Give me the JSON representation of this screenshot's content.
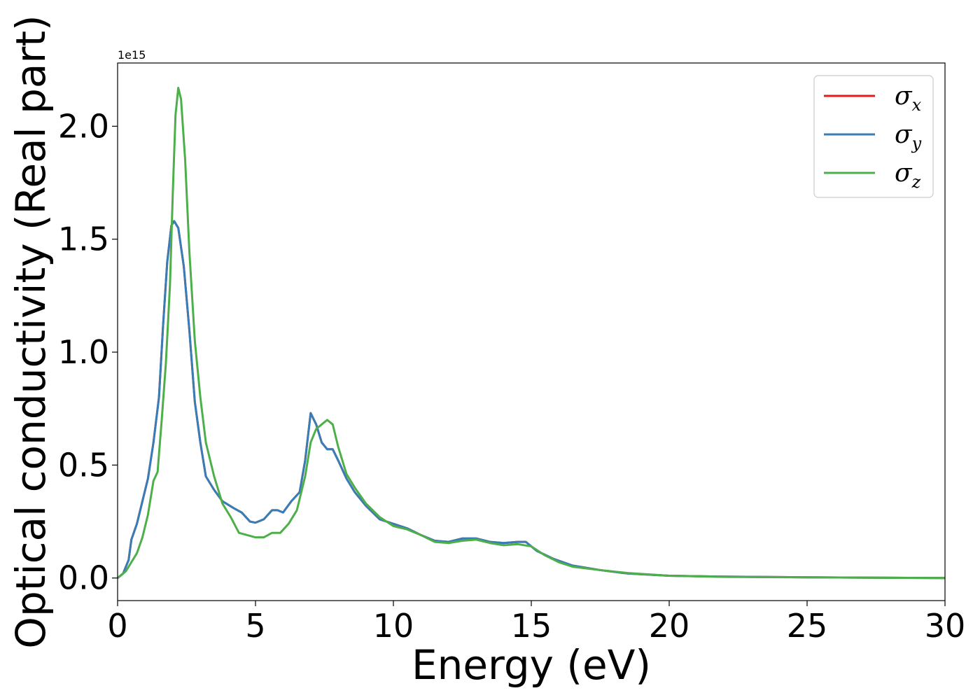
{
  "chart_data": {
    "type": "line",
    "xlabel": "Energy (eV)",
    "ylabel": "Optical conductivity (Real part)",
    "y_offset_label": "1e15",
    "xlim": [
      0,
      30
    ],
    "ylim": [
      -0.1,
      2.28
    ],
    "x_ticks": [
      0,
      5,
      10,
      15,
      20,
      25,
      30
    ],
    "x_tick_labels": [
      "0",
      "5",
      "10",
      "15",
      "20",
      "25",
      "30"
    ],
    "y_ticks": [
      0.0,
      0.5,
      1.0,
      1.5,
      2.0
    ],
    "y_tick_labels": [
      "0.0",
      "0.5",
      "1.0",
      "1.5",
      "2.0"
    ],
    "grid": false,
    "legend_position": "top-right",
    "series": [
      {
        "name": "σ",
        "subscript": "x",
        "color": "#e41a1c",
        "points": [
          [
            0,
            0
          ],
          [
            0.2,
            0.02
          ],
          [
            0.4,
            0.08
          ],
          [
            0.5,
            0.17
          ],
          [
            0.7,
            0.24
          ],
          [
            0.9,
            0.34
          ],
          [
            1.1,
            0.44
          ],
          [
            1.3,
            0.6
          ],
          [
            1.5,
            0.8
          ],
          [
            1.65,
            1.12
          ],
          [
            1.8,
            1.4
          ],
          [
            1.95,
            1.56
          ],
          [
            2.05,
            1.58
          ],
          [
            2.2,
            1.55
          ],
          [
            2.4,
            1.38
          ],
          [
            2.6,
            1.1
          ],
          [
            2.8,
            0.78
          ],
          [
            3.0,
            0.6
          ],
          [
            3.2,
            0.45
          ],
          [
            3.5,
            0.39
          ],
          [
            3.8,
            0.34
          ],
          [
            4.2,
            0.31
          ],
          [
            4.5,
            0.29
          ],
          [
            4.8,
            0.25
          ],
          [
            5.0,
            0.245
          ],
          [
            5.3,
            0.26
          ],
          [
            5.6,
            0.3
          ],
          [
            5.8,
            0.3
          ],
          [
            6.0,
            0.29
          ],
          [
            6.3,
            0.34
          ],
          [
            6.6,
            0.38
          ],
          [
            6.8,
            0.52
          ],
          [
            7.0,
            0.73
          ],
          [
            7.2,
            0.68
          ],
          [
            7.4,
            0.6
          ],
          [
            7.6,
            0.57
          ],
          [
            7.8,
            0.57
          ],
          [
            8.0,
            0.52
          ],
          [
            8.3,
            0.44
          ],
          [
            8.6,
            0.38
          ],
          [
            9.0,
            0.32
          ],
          [
            9.5,
            0.26
          ],
          [
            10.0,
            0.24
          ],
          [
            10.5,
            0.22
          ],
          [
            11.0,
            0.19
          ],
          [
            11.5,
            0.165
          ],
          [
            12.0,
            0.16
          ],
          [
            12.5,
            0.175
          ],
          [
            13.0,
            0.175
          ],
          [
            13.5,
            0.16
          ],
          [
            14.0,
            0.155
          ],
          [
            14.5,
            0.16
          ],
          [
            14.8,
            0.16
          ],
          [
            15.2,
            0.12
          ],
          [
            15.8,
            0.085
          ],
          [
            16.5,
            0.055
          ],
          [
            17.5,
            0.035
          ],
          [
            18.5,
            0.02
          ],
          [
            20,
            0.01
          ],
          [
            22,
            0.006
          ],
          [
            25,
            0.003
          ],
          [
            28,
            0.001
          ],
          [
            30,
            0.0
          ]
        ]
      },
      {
        "name": "σ",
        "subscript": "y",
        "color": "#377eb8",
        "points": [
          [
            0,
            0
          ],
          [
            0.2,
            0.02
          ],
          [
            0.4,
            0.08
          ],
          [
            0.5,
            0.17
          ],
          [
            0.7,
            0.24
          ],
          [
            0.9,
            0.34
          ],
          [
            1.1,
            0.44
          ],
          [
            1.3,
            0.6
          ],
          [
            1.5,
            0.8
          ],
          [
            1.65,
            1.12
          ],
          [
            1.8,
            1.4
          ],
          [
            1.95,
            1.56
          ],
          [
            2.05,
            1.58
          ],
          [
            2.2,
            1.55
          ],
          [
            2.4,
            1.38
          ],
          [
            2.6,
            1.1
          ],
          [
            2.8,
            0.78
          ],
          [
            3.0,
            0.6
          ],
          [
            3.2,
            0.45
          ],
          [
            3.5,
            0.39
          ],
          [
            3.8,
            0.34
          ],
          [
            4.2,
            0.31
          ],
          [
            4.5,
            0.29
          ],
          [
            4.8,
            0.25
          ],
          [
            5.0,
            0.245
          ],
          [
            5.3,
            0.26
          ],
          [
            5.6,
            0.3
          ],
          [
            5.8,
            0.3
          ],
          [
            6.0,
            0.29
          ],
          [
            6.3,
            0.34
          ],
          [
            6.6,
            0.38
          ],
          [
            6.8,
            0.52
          ],
          [
            7.0,
            0.73
          ],
          [
            7.2,
            0.68
          ],
          [
            7.4,
            0.6
          ],
          [
            7.6,
            0.57
          ],
          [
            7.8,
            0.57
          ],
          [
            8.0,
            0.52
          ],
          [
            8.3,
            0.44
          ],
          [
            8.6,
            0.38
          ],
          [
            9.0,
            0.32
          ],
          [
            9.5,
            0.26
          ],
          [
            10.0,
            0.24
          ],
          [
            10.5,
            0.22
          ],
          [
            11.0,
            0.19
          ],
          [
            11.5,
            0.165
          ],
          [
            12.0,
            0.16
          ],
          [
            12.5,
            0.175
          ],
          [
            13.0,
            0.175
          ],
          [
            13.5,
            0.16
          ],
          [
            14.0,
            0.155
          ],
          [
            14.5,
            0.16
          ],
          [
            14.8,
            0.16
          ],
          [
            15.2,
            0.12
          ],
          [
            15.8,
            0.085
          ],
          [
            16.5,
            0.055
          ],
          [
            17.5,
            0.035
          ],
          [
            18.5,
            0.02
          ],
          [
            20,
            0.01
          ],
          [
            22,
            0.006
          ],
          [
            25,
            0.003
          ],
          [
            28,
            0.001
          ],
          [
            30,
            0.0
          ]
        ]
      },
      {
        "name": "σ",
        "subscript": "z",
        "color": "#4daf4a",
        "points": [
          [
            0,
            0
          ],
          [
            0.3,
            0.03
          ],
          [
            0.5,
            0.07
          ],
          [
            0.7,
            0.11
          ],
          [
            0.9,
            0.18
          ],
          [
            1.1,
            0.28
          ],
          [
            1.3,
            0.43
          ],
          [
            1.45,
            0.47
          ],
          [
            1.6,
            0.7
          ],
          [
            1.75,
            0.95
          ],
          [
            1.9,
            1.3
          ],
          [
            2.0,
            1.7
          ],
          [
            2.1,
            2.05
          ],
          [
            2.2,
            2.17
          ],
          [
            2.3,
            2.12
          ],
          [
            2.45,
            1.85
          ],
          [
            2.6,
            1.45
          ],
          [
            2.8,
            1.05
          ],
          [
            3.0,
            0.8
          ],
          [
            3.2,
            0.6
          ],
          [
            3.5,
            0.45
          ],
          [
            3.8,
            0.33
          ],
          [
            4.1,
            0.27
          ],
          [
            4.4,
            0.2
          ],
          [
            4.7,
            0.19
          ],
          [
            5.0,
            0.18
          ],
          [
            5.3,
            0.18
          ],
          [
            5.6,
            0.2
          ],
          [
            5.9,
            0.2
          ],
          [
            6.2,
            0.24
          ],
          [
            6.5,
            0.3
          ],
          [
            6.8,
            0.45
          ],
          [
            7.0,
            0.6
          ],
          [
            7.2,
            0.66
          ],
          [
            7.4,
            0.68
          ],
          [
            7.6,
            0.7
          ],
          [
            7.8,
            0.68
          ],
          [
            8.0,
            0.58
          ],
          [
            8.3,
            0.46
          ],
          [
            8.6,
            0.4
          ],
          [
            9.0,
            0.33
          ],
          [
            9.5,
            0.27
          ],
          [
            10.0,
            0.23
          ],
          [
            10.5,
            0.215
          ],
          [
            11.0,
            0.19
          ],
          [
            11.5,
            0.16
          ],
          [
            12.0,
            0.155
          ],
          [
            12.5,
            0.165
          ],
          [
            13.0,
            0.17
          ],
          [
            13.5,
            0.155
          ],
          [
            14.0,
            0.145
          ],
          [
            14.5,
            0.15
          ],
          [
            15.0,
            0.14
          ],
          [
            15.5,
            0.1
          ],
          [
            16.0,
            0.07
          ],
          [
            16.5,
            0.05
          ],
          [
            17.5,
            0.035
          ],
          [
            18.5,
            0.022
          ],
          [
            20,
            0.01
          ],
          [
            22,
            0.005
          ],
          [
            25,
            0.003
          ],
          [
            28,
            0.001
          ],
          [
            30,
            0.0
          ]
        ]
      }
    ]
  }
}
